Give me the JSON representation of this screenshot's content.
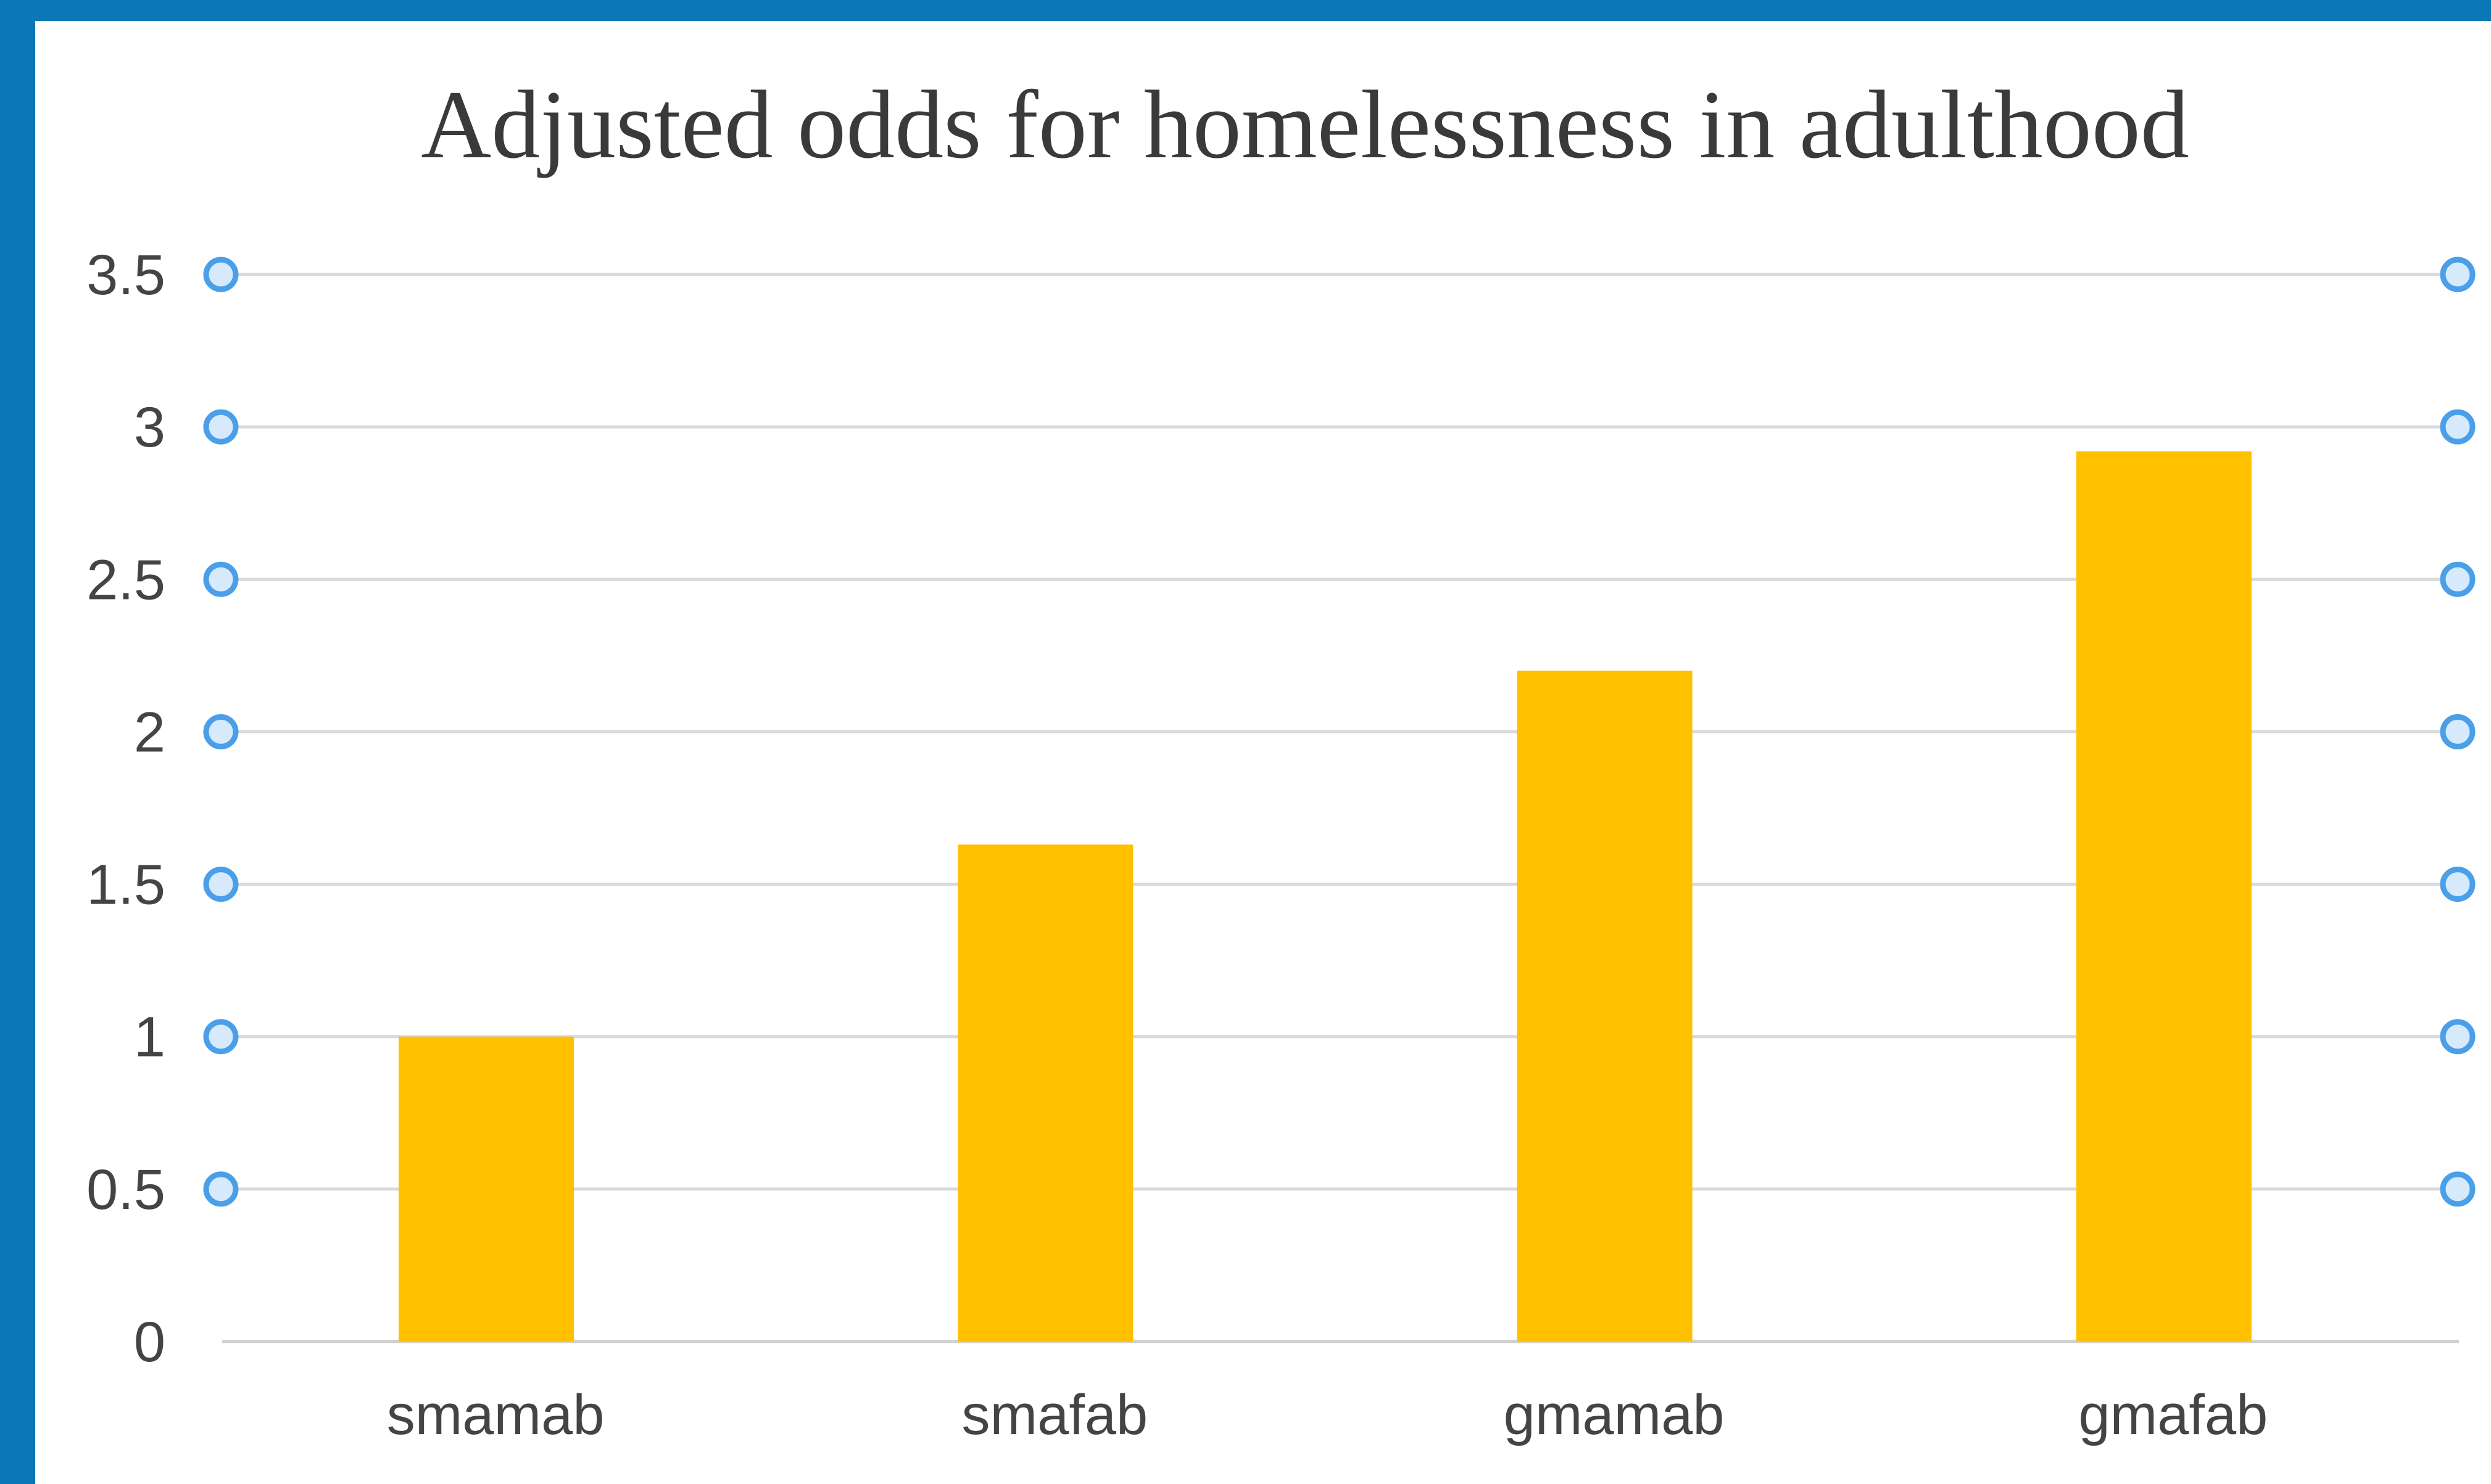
{
  "chart_data": {
    "type": "bar",
    "title": "Adjusted odds for homelessness in adulthood",
    "xlabel": "",
    "ylabel": "",
    "categories": [
      "smamab",
      "smafab",
      "gmamab",
      "gmafab"
    ],
    "values": [
      1.0,
      1.63,
      2.2,
      2.92
    ],
    "ylim": [
      0,
      3.5
    ],
    "y_ticks": [
      "0",
      "0.5",
      "1",
      "1.5",
      "2",
      "2.5",
      "3",
      "3.5"
    ],
    "y_tick_values": [
      0,
      0.5,
      1,
      1.5,
      2,
      2.5,
      3,
      3.5
    ],
    "grid": true,
    "legend": "none",
    "bar_color": "#ffc000",
    "grid_color": "#d9d9d9",
    "handle_color": "#4a9fe8"
  }
}
